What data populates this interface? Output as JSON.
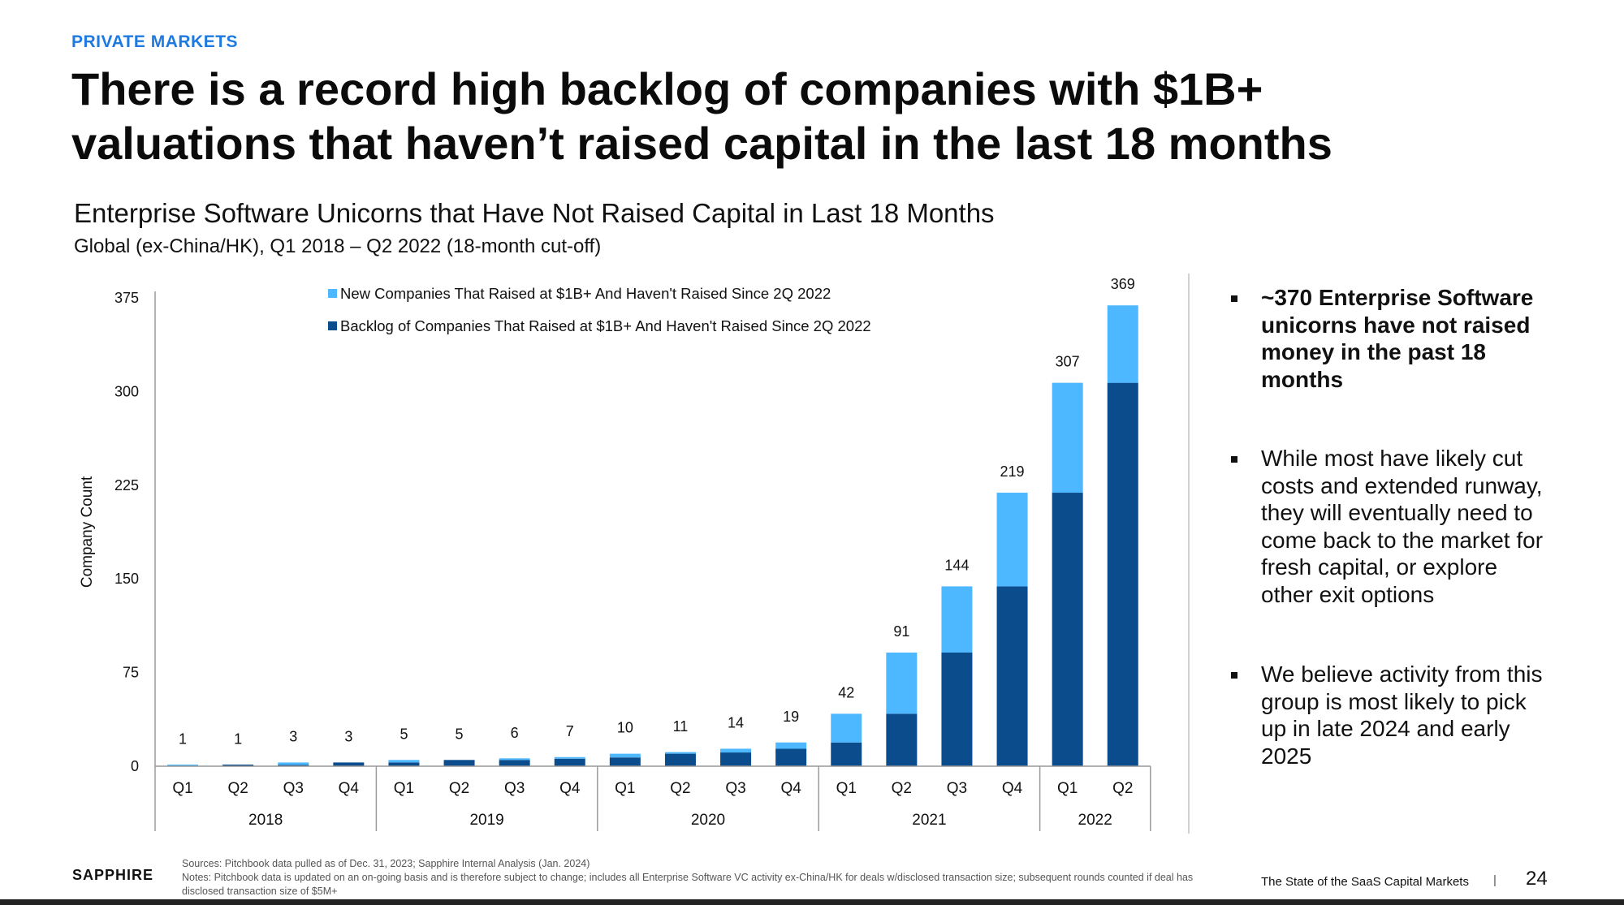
{
  "header": {
    "kicker": "PRIVATE MARKETS",
    "title": "There is a record high backlog of companies with $1B+ valuations that haven’t raised capital in the last 18 months"
  },
  "chart_header": {
    "subtitle": "Enterprise Software Unicorns that Have Not Raised Capital in Last 18 Months",
    "sub_subtitle": "Global (ex-China/HK), Q1 2018 – Q2 2022 (18-month cut-off)"
  },
  "colors": {
    "new": "#4db8ff",
    "backlog": "#0a4c8c",
    "axis": "#9a9a9a"
  },
  "chart_data": {
    "type": "bar",
    "stacked": true,
    "ylabel": "Company Count",
    "ylim": [
      0,
      375
    ],
    "yticks": [
      0,
      75,
      150,
      225,
      300,
      375
    ],
    "categories": [
      "Q1",
      "Q2",
      "Q3",
      "Q4",
      "Q1",
      "Q2",
      "Q3",
      "Q4",
      "Q1",
      "Q2",
      "Q3",
      "Q4",
      "Q1",
      "Q2",
      "Q3",
      "Q4",
      "Q1",
      "Q2"
    ],
    "year_groups": [
      {
        "label": "2018",
        "count": 4
      },
      {
        "label": "2019",
        "count": 4
      },
      {
        "label": "2020",
        "count": 4
      },
      {
        "label": "2021",
        "count": 4
      },
      {
        "label": "2022",
        "count": 2
      }
    ],
    "series": [
      {
        "name": "Backlog of Companies That Raised at $1B+ And Haven't Raised Since 2Q 2022",
        "values": [
          0,
          1,
          1,
          3,
          3,
          5,
          5,
          6,
          7,
          10,
          11,
          14,
          19,
          42,
          91,
          144,
          219,
          307
        ]
      },
      {
        "name": "New Companies That Raised at $1B+ And Haven't Raised Since 2Q 2022",
        "values": [
          1,
          0,
          2,
          0,
          2,
          0,
          1,
          1,
          3,
          1,
          3,
          5,
          23,
          49,
          53,
          75,
          88,
          62
        ]
      }
    ],
    "totals": [
      1,
      1,
      3,
      3,
      5,
      5,
      6,
      7,
      10,
      11,
      14,
      19,
      42,
      91,
      144,
      219,
      307,
      369
    ],
    "legend": [
      {
        "label": "New Companies That Raised at $1B+ And Haven't Raised Since 2Q 2022",
        "series": "new"
      },
      {
        "label": "Backlog of Companies That Raised at $1B+ And Haven't Raised Since 2Q 2022",
        "series": "backlog"
      }
    ],
    "legend_position": "top-left"
  },
  "bullets": [
    "~370 Enterprise Software unicorns have not raised money in the past 18 months",
    "While most have likely cut costs and extended runway, they will eventually need to come back to the market for fresh capital, or explore other exit options",
    "We believe activity from this group is most likely to pick up in late 2024 and early 2025"
  ],
  "footer": {
    "logo": "SAPPHIRE",
    "sources": "Sources: Pitchbook data pulled as of Dec. 31, 2023; Sapphire Internal Analysis (Jan. 2024)",
    "notes": "Notes: Pitchbook data is updated on an on-going basis and is therefore subject to change; includes all Enterprise Software VC activity ex-China/HK for deals w/disclosed transaction size; subsequent rounds counted if deal has disclosed transaction size of $5M+",
    "report_name": "The State of the SaaS Capital Markets",
    "separator": "|",
    "page_number": "24"
  }
}
